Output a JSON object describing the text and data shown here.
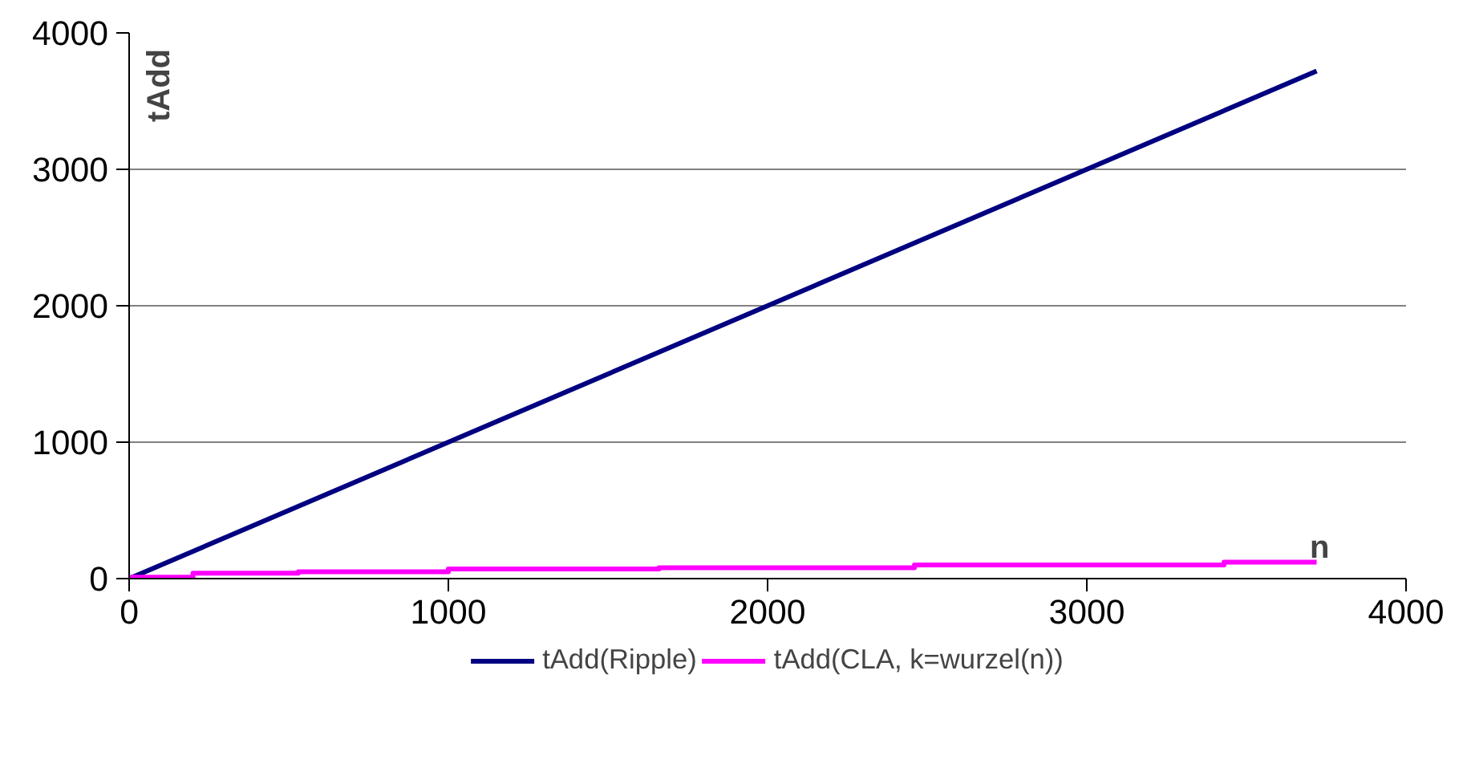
{
  "chart_data": {
    "type": "line",
    "xlabel": "n",
    "ylabel": "tAdd",
    "xlim": [
      0,
      4000
    ],
    "xticks": [
      0,
      1000,
      2000,
      3000,
      4000
    ],
    "ylim": [
      0,
      4000
    ],
    "yticks": [
      0,
      1000,
      2000,
      3000,
      4000
    ],
    "grid": "y",
    "legend": "bottom",
    "marker": "none",
    "line_style": "solid",
    "series": [
      {
        "name": "tAdd(Ripple)",
        "color": "#000080",
        "x": [
          0,
          3720
        ],
        "values": [
          0,
          3720
        ]
      },
      {
        "name": "tAdd(CLA, k=wurzel(n))",
        "color": "#ff00ff",
        "type": "step",
        "x": [
          0,
          200,
          530,
          1000,
          1660,
          2460,
          3430,
          3720
        ],
        "values": [
          10,
          40,
          50,
          70,
          80,
          100,
          120,
          120
        ]
      }
    ]
  }
}
